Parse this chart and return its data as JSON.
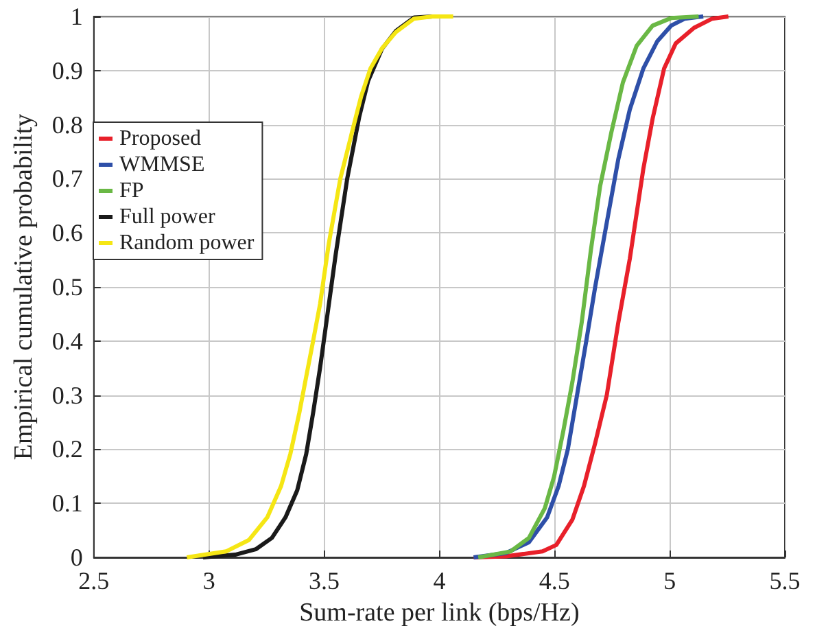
{
  "chart_data": {
    "type": "line",
    "xlabel": "Sum-rate per link (bps/Hz)",
    "ylabel": "Empirical cumulative probability",
    "xlim": [
      2.5,
      5.5
    ],
    "xticks": [
      2.5,
      3,
      3.5,
      4,
      4.5,
      5,
      5.5
    ],
    "ylim": [
      0,
      1
    ],
    "yticks": [
      0,
      0.1,
      0.2,
      0.3,
      0.4,
      0.5,
      0.6,
      0.7,
      0.8,
      0.9,
      1
    ],
    "grid": true,
    "legend": "left",
    "marker": "none",
    "line_style": "solid",
    "series": [
      {
        "name": "Proposed",
        "color": "#e8202a",
        "x": [
          4.149,
          4.289,
          4.448,
          4.508,
          4.578,
          4.628,
          4.677,
          4.727,
          4.777,
          4.827,
          4.886,
          4.926,
          4.976,
          5.026,
          5.106,
          5.185,
          5.255
        ],
        "values": [
          0,
          0.002,
          0.011,
          0.023,
          0.07,
          0.132,
          0.212,
          0.3,
          0.434,
          0.552,
          0.719,
          0.811,
          0.904,
          0.95,
          0.979,
          0.996,
          1
        ]
      },
      {
        "name": "WMMSE",
        "color": "#2e4fa8",
        "x": [
          4.149,
          4.289,
          4.389,
          4.468,
          4.518,
          4.558,
          4.598,
          4.638,
          4.677,
          4.727,
          4.777,
          4.827,
          4.886,
          4.946,
          5.006,
          5.066,
          5.146
        ],
        "values": [
          0,
          0.008,
          0.028,
          0.074,
          0.132,
          0.2,
          0.3,
          0.4,
          0.501,
          0.619,
          0.736,
          0.828,
          0.904,
          0.954,
          0.983,
          0.996,
          1
        ]
      },
      {
        "name": "FP",
        "color": "#6ab845",
        "x": [
          4.169,
          4.309,
          4.389,
          4.458,
          4.498,
          4.538,
          4.578,
          4.618,
          4.658,
          4.698,
          4.747,
          4.797,
          4.857,
          4.926,
          5.006,
          5.126
        ],
        "values": [
          0,
          0.011,
          0.036,
          0.091,
          0.149,
          0.233,
          0.325,
          0.434,
          0.568,
          0.686,
          0.786,
          0.878,
          0.946,
          0.983,
          0.997,
          1
        ]
      },
      {
        "name": "Full power",
        "color": "#1a1a1a",
        "x": [
          2.974,
          3.114,
          3.203,
          3.273,
          3.332,
          3.383,
          3.422,
          3.452,
          3.482,
          3.512,
          3.55,
          3.6,
          3.652,
          3.691,
          3.751,
          3.811,
          3.89,
          3.97,
          4.05
        ],
        "values": [
          0,
          0.005,
          0.015,
          0.036,
          0.074,
          0.124,
          0.191,
          0.267,
          0.35,
          0.442,
          0.56,
          0.7,
          0.814,
          0.881,
          0.94,
          0.973,
          0.998,
          1,
          1
        ]
      },
      {
        "name": "Random power",
        "color": "#f5e614",
        "x": [
          2.904,
          3.074,
          3.173,
          3.253,
          3.313,
          3.353,
          3.392,
          3.422,
          3.452,
          3.482,
          3.52,
          3.57,
          3.635,
          3.661,
          3.701,
          3.751,
          3.811,
          3.89,
          3.97,
          4.06
        ],
        "values": [
          0,
          0.011,
          0.032,
          0.074,
          0.132,
          0.191,
          0.267,
          0.334,
          0.4,
          0.468,
          0.58,
          0.7,
          0.81,
          0.853,
          0.904,
          0.941,
          0.971,
          0.996,
          1,
          1
        ]
      }
    ]
  }
}
